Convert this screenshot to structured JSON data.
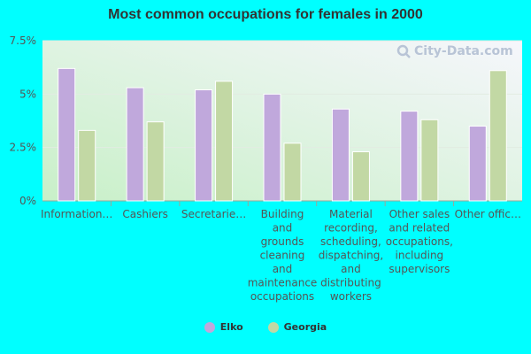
{
  "colors": {
    "elko": "#c0a8dc",
    "georgia": "#c2d8a4",
    "background": "#00ffff"
  },
  "watermark": {
    "text": "City-Data.com"
  },
  "chart_data": {
    "type": "bar",
    "title": "Most common occupations for females in 2000",
    "categories": [
      "Information…",
      "Cashiers",
      "Secretarie…",
      "Building and grounds cleaning and maintenance occupations",
      "Material recording, scheduling, dispatching, and distributing workers",
      "Other sales and related occupations, including supervisors",
      "Other offic…"
    ],
    "category_lines": [
      [
        "Information…"
      ],
      [
        "Cashiers"
      ],
      [
        "Secretarie…"
      ],
      [
        "Building",
        "and",
        "grounds",
        "cleaning",
        "and",
        "maintenance",
        "occupations"
      ],
      [
        "Material",
        "recording,",
        "scheduling,",
        "dispatching,",
        "and",
        "distributing",
        "workers"
      ],
      [
        "Other sales",
        "and related",
        "occupations,",
        "including",
        "supervisors"
      ],
      [
        "Other offic…"
      ]
    ],
    "series": [
      {
        "name": "Elko",
        "values": [
          6.2,
          5.3,
          5.2,
          5.0,
          4.3,
          4.2,
          3.5
        ]
      },
      {
        "name": "Georgia",
        "values": [
          3.3,
          3.7,
          5.6,
          2.7,
          2.3,
          3.8,
          6.1
        ]
      }
    ],
    "yticks": [
      "0%",
      "2.5%",
      "5%",
      "7.5%"
    ],
    "ytick_values": [
      0,
      2.5,
      5,
      7.5
    ],
    "ylim": [
      0,
      7.5
    ],
    "grid": true,
    "legend_position": "bottom-center"
  }
}
